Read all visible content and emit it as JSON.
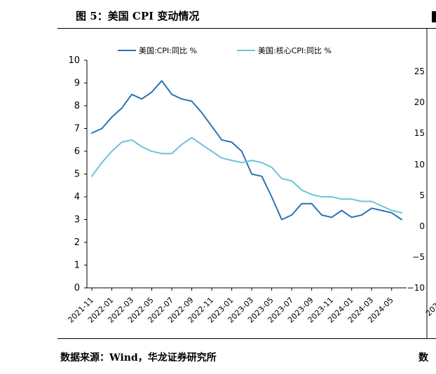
{
  "figure": {
    "title": "图 5：美国 CPI 变动情况",
    "source": "数据来源：Wind，华龙证券研究所",
    "right_panel_source_fragment": "数",
    "right_panel_yticks": [
      "25",
      "20",
      "15",
      "10",
      "5",
      "0",
      "−5",
      "−10"
    ],
    "right_panel_xtick_fragment": "202"
  },
  "colors": {
    "cpi": "#2a72b5",
    "core_cpi": "#6cc4d6",
    "axis": "#000000",
    "text": "#000000"
  },
  "chart_data": {
    "type": "line",
    "title": "",
    "xlabel": "",
    "ylabel": "",
    "ylim": [
      0,
      10
    ],
    "yticks": [
      0,
      1,
      2,
      3,
      4,
      5,
      6,
      7,
      8,
      9,
      10
    ],
    "x": [
      "2021-11",
      "2021-12",
      "2022-01",
      "2022-02",
      "2022-03",
      "2022-04",
      "2022-05",
      "2022-06",
      "2022-07",
      "2022-08",
      "2022-09",
      "2022-10",
      "2022-11",
      "2022-12",
      "2023-01",
      "2023-02",
      "2023-03",
      "2023-04",
      "2023-05",
      "2023-06",
      "2023-07",
      "2023-08",
      "2023-09",
      "2023-10",
      "2023-11",
      "2023-12",
      "2024-01",
      "2024-02",
      "2024-03",
      "2024-04",
      "2024-05",
      "2024-06"
    ],
    "xticks": [
      "2021-11",
      "2022-01",
      "2022-03",
      "2022-05",
      "2022-07",
      "2022-09",
      "2022-11",
      "2023-01",
      "2023-03",
      "2023-05",
      "2023-07",
      "2023-09",
      "2023-11",
      "2024-01",
      "2024-03",
      "2024-05"
    ],
    "legend_position": "top",
    "grid": false,
    "series": [
      {
        "name": "美国:CPI:同比 %",
        "color": "#2a72b5",
        "values": [
          6.8,
          7.0,
          7.5,
          7.9,
          8.5,
          8.3,
          8.6,
          9.1,
          8.5,
          8.3,
          8.2,
          7.7,
          7.1,
          6.5,
          6.4,
          6.0,
          5.0,
          4.9,
          4.0,
          3.0,
          3.2,
          3.7,
          3.7,
          3.2,
          3.1,
          3.4,
          3.1,
          3.2,
          3.5,
          3.4,
          3.3,
          3.0
        ]
      },
      {
        "name": "美国:核心CPI:同比 %",
        "color": "#6cc4d6",
        "values": [
          4.9,
          5.5,
          6.0,
          6.4,
          6.5,
          6.2,
          6.0,
          5.9,
          5.9,
          6.3,
          6.6,
          6.3,
          6.0,
          5.7,
          5.6,
          5.5,
          5.6,
          5.5,
          5.3,
          4.8,
          4.7,
          4.3,
          4.1,
          4.0,
          4.0,
          3.9,
          3.9,
          3.8,
          3.8,
          3.6,
          3.4,
          3.3
        ]
      }
    ]
  }
}
